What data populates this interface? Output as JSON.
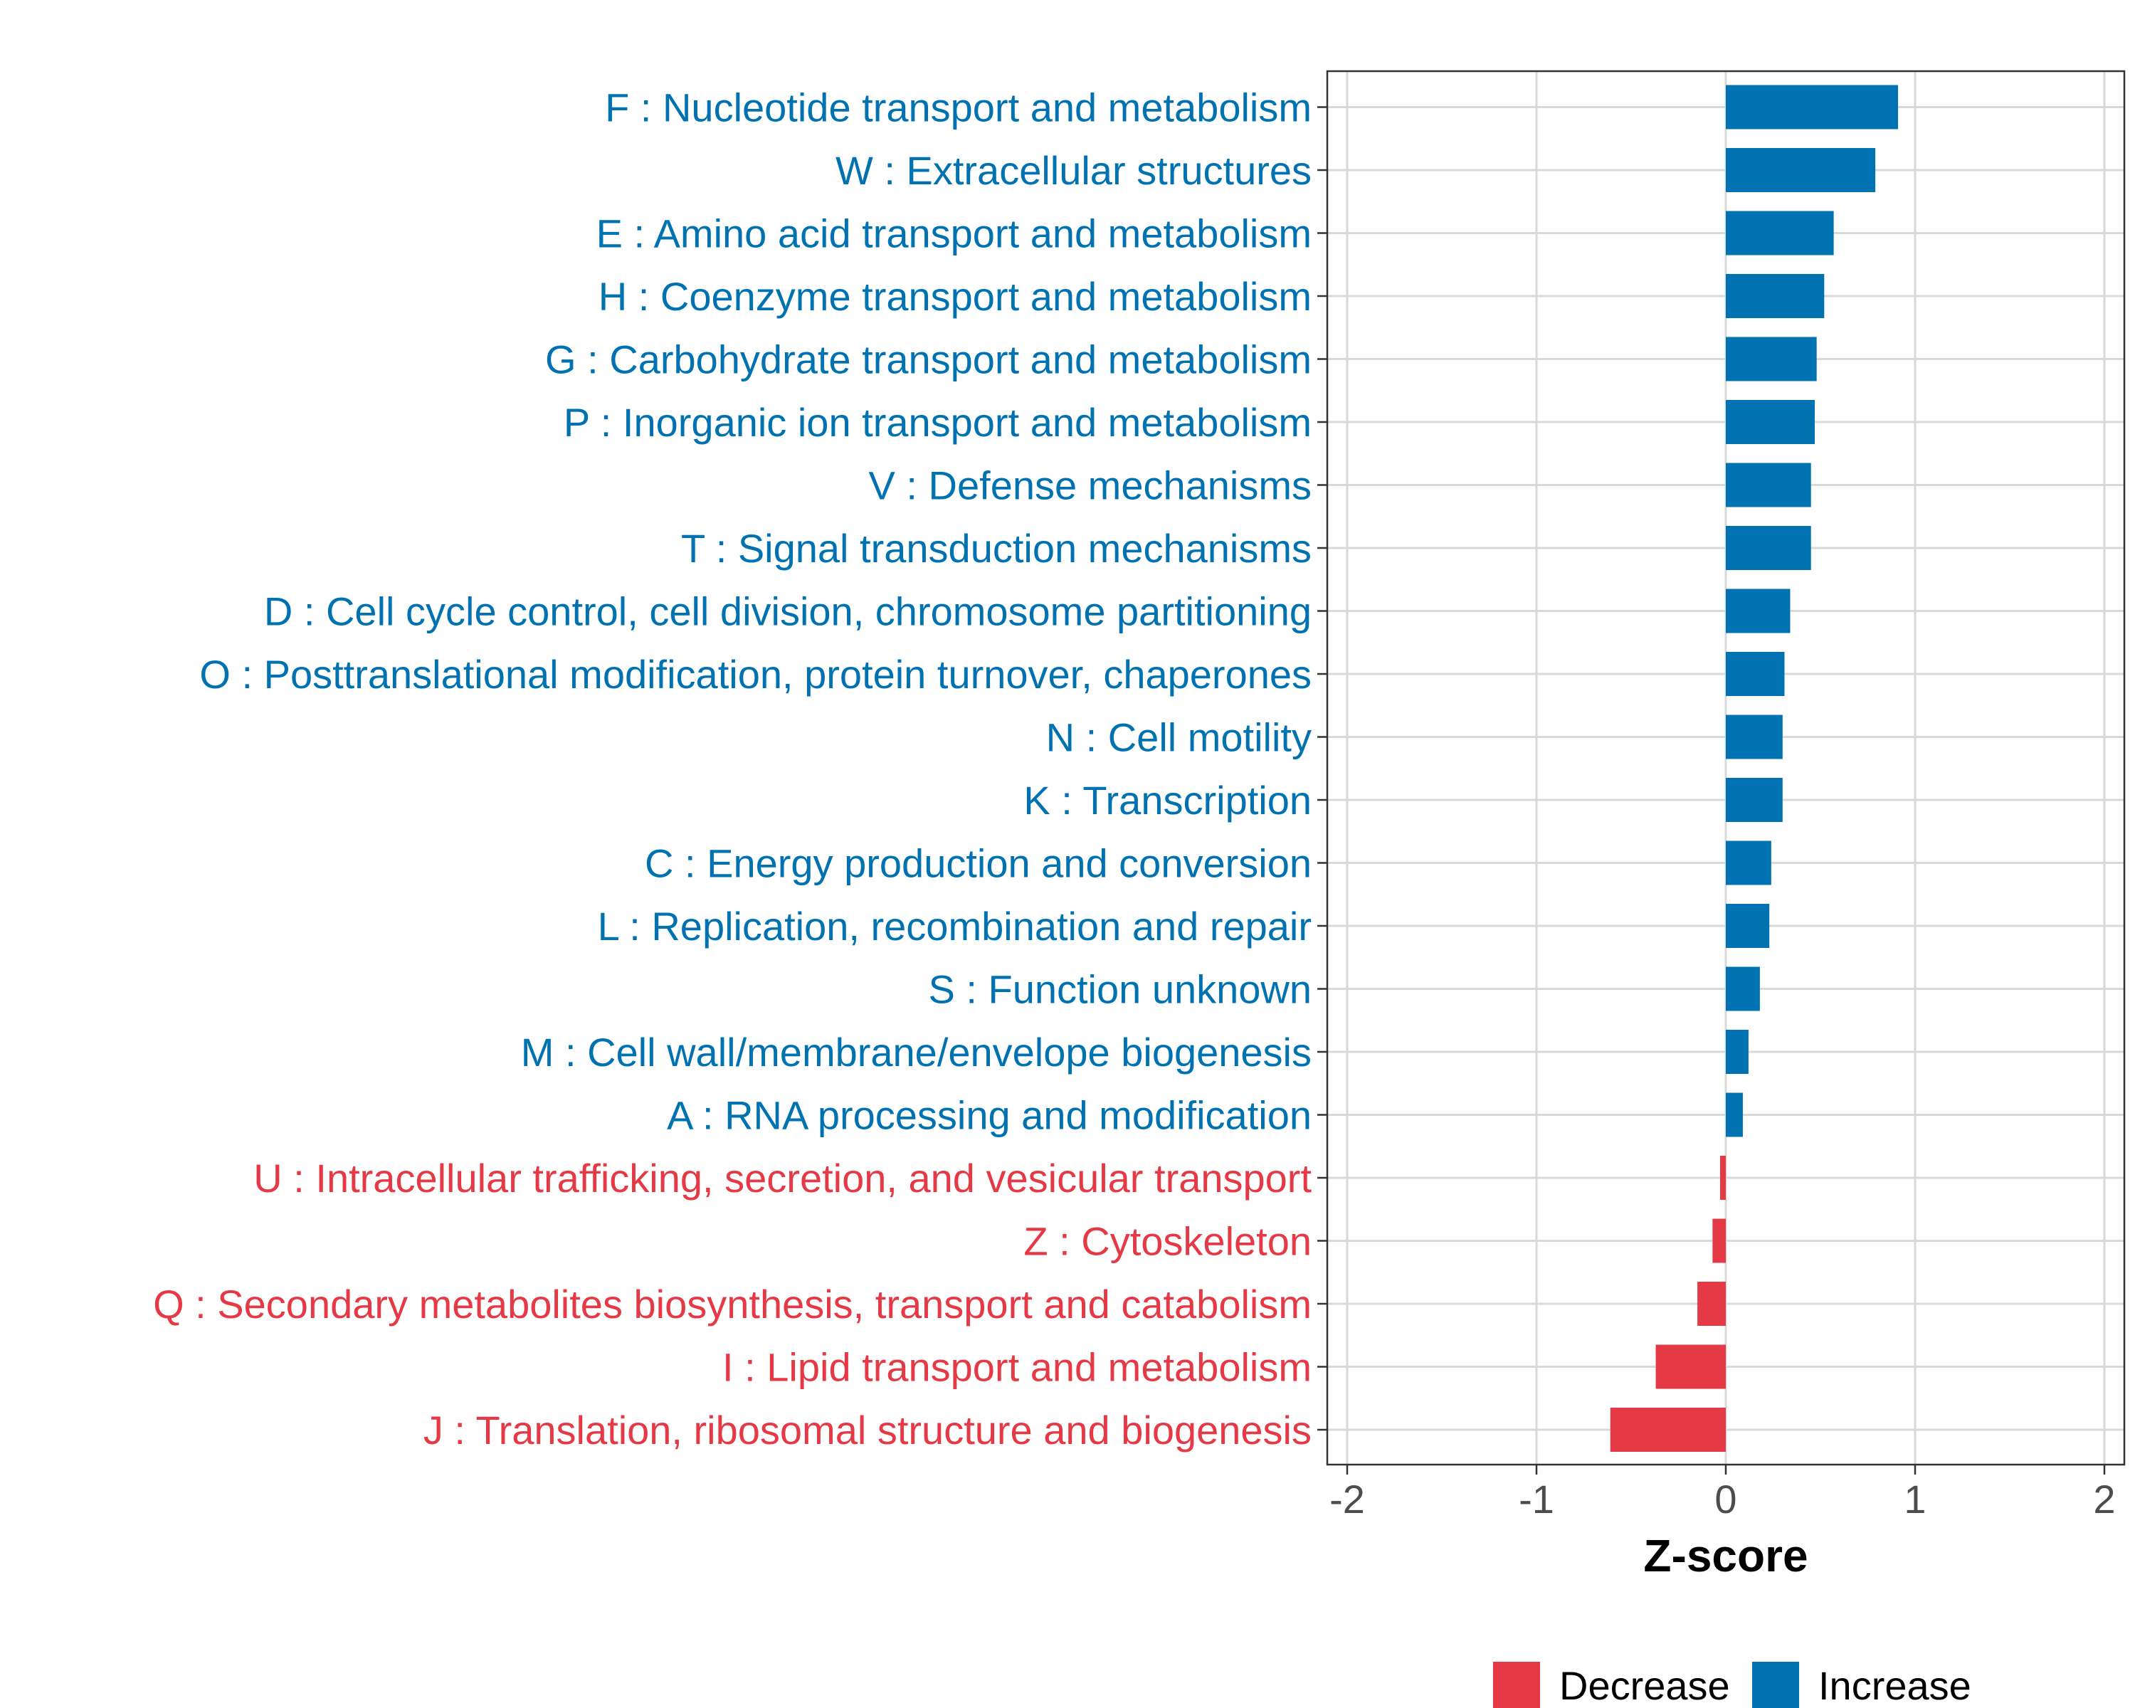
{
  "colors": {
    "increase": "#0072B2",
    "decrease": "#E63946"
  },
  "chart_data": {
    "type": "bar",
    "orientation": "horizontal",
    "title": "",
    "xlabel": "Z-score",
    "ylabel": "",
    "xlim": [
      -2.1,
      2.1
    ],
    "xticks": [
      -2,
      -1,
      0,
      1,
      2
    ],
    "grid": true,
    "legend": {
      "position": "bottom",
      "entries": [
        {
          "label": "Decrease",
          "color": "#E63946"
        },
        {
          "label": "Increase",
          "color": "#0072B2"
        }
      ]
    },
    "categories": [
      "F : Nucleotide transport and metabolism",
      "W : Extracellular structures",
      "E : Amino acid transport and metabolism",
      "H : Coenzyme transport and metabolism",
      "G : Carbohydrate transport and metabolism",
      "P : Inorganic ion transport and metabolism",
      "V : Defense mechanisms",
      "T : Signal transduction mechanisms",
      "D : Cell cycle control, cell division, chromosome partitioning",
      "O : Posttranslational modification, protein turnover, chaperones",
      "N : Cell motility",
      "K : Transcription",
      "C : Energy production and conversion",
      "L : Replication, recombination and repair",
      "S : Function unknown",
      "M : Cell wall/membrane/envelope biogenesis",
      "A : RNA processing and modification",
      "U : Intracellular trafficking, secretion, and vesicular transport",
      "Z : Cytoskeleton",
      "Q : Secondary metabolites biosynthesis, transport and catabolism",
      "I : Lipid transport and metabolism",
      "J : Translation, ribosomal structure and biogenesis"
    ],
    "values": [
      0.91,
      0.79,
      0.57,
      0.52,
      0.48,
      0.47,
      0.45,
      0.45,
      0.34,
      0.31,
      0.3,
      0.3,
      0.24,
      0.23,
      0.18,
      0.12,
      0.09,
      -0.03,
      -0.07,
      -0.15,
      -0.37,
      -0.61
    ]
  }
}
